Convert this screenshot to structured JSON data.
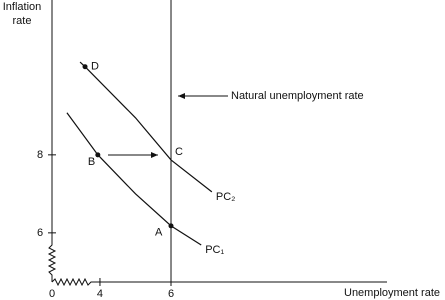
{
  "chart_data": {
    "type": "line",
    "ylabel": [
      "Inflation",
      "rate"
    ],
    "xlabel": "Unemployment rate",
    "origin_label": "0",
    "xlim": [
      2.65,
      12.08
    ],
    "ylim": [
      4.74,
      11.97
    ],
    "xticks": [
      4,
      6
    ],
    "yticks": [
      6,
      8
    ],
    "natural_rate": 6,
    "natural_rate_label": "Natural unemployment rate",
    "series": [
      {
        "name": "PC₁",
        "color": "#111111",
        "x": [
          3.07,
          3.94,
          5,
          6,
          6.85
        ],
        "values": [
          9.08,
          8.0,
          7.0,
          6.18,
          5.69
        ]
      },
      {
        "name": "PC₂",
        "color": "#111111",
        "x": [
          3.44,
          3.58,
          5,
          6,
          7.15
        ],
        "values": [
          10.38,
          10.26,
          8.95,
          7.87,
          7.05
        ]
      }
    ],
    "points": [
      {
        "label": "D",
        "x": 3.58,
        "y": 10.26,
        "marker": true
      },
      {
        "label": "B",
        "x": 3.94,
        "y": 8.0,
        "marker": true
      },
      {
        "label": "C",
        "x": 6,
        "y": 7.87,
        "marker": false
      },
      {
        "label": "A",
        "x": 6,
        "y": 6.18,
        "marker": true
      }
    ]
  }
}
